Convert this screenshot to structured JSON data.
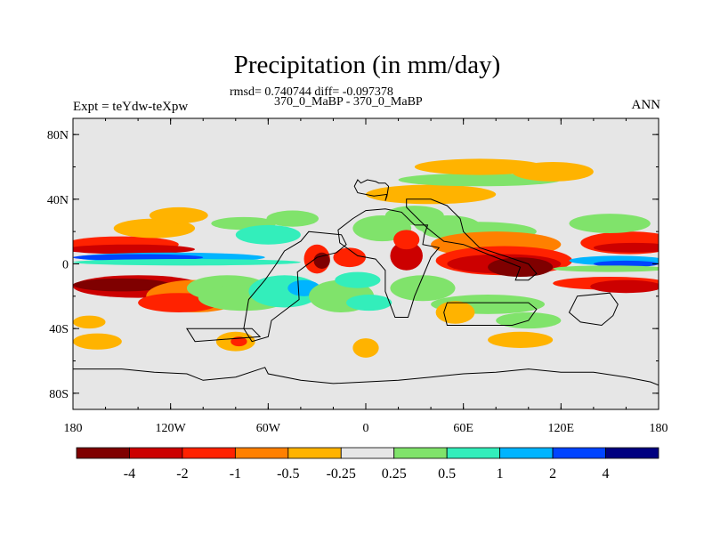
{
  "title": "Precipitation (in mm/day)",
  "stats_line": "rmsd= 0.740744 diff= -0.097378",
  "subtitle": "370_0_MaBP - 370_0_MaBP",
  "left_label": "Expt = teYdw-teXpw",
  "right_label": "ANN",
  "chart_data": {
    "type": "heatmap",
    "projection": "cylindrical equidistant",
    "x_ticks": [
      "180",
      "120W",
      "60W",
      "0",
      "60E",
      "120E",
      "180"
    ],
    "y_ticks": [
      "80N",
      "40N",
      "0",
      "40S",
      "80S"
    ],
    "xlim": [
      -180,
      180
    ],
    "ylim": [
      -90,
      90
    ],
    "levels": [
      "-4",
      "-2",
      "-1",
      "-0.5",
      "-0.25",
      "0.25",
      "0.5",
      "1",
      "2",
      "4"
    ],
    "colors": [
      "#7f0000",
      "#cc0000",
      "#ff2200",
      "#ff8000",
      "#ffb300",
      "#e6e6e6",
      "#80e36b",
      "#33eebb",
      "#00b4ff",
      "#0044ff",
      "#000080"
    ],
    "background_color": "#e6e6e6",
    "features": [
      {
        "lon": -165,
        "lat": 12,
        "rx": 16,
        "ry": 7,
        "class": 5
      },
      {
        "lon": -150,
        "lat": 12,
        "rx": 35,
        "ry": 5,
        "class": 2
      },
      {
        "lon": -145,
        "lat": 9,
        "rx": 40,
        "ry": 3,
        "class": 1
      },
      {
        "lon": -130,
        "lat": 22,
        "rx": 25,
        "ry": 6,
        "class": 4
      },
      {
        "lon": -115,
        "lat": 30,
        "rx": 18,
        "ry": 5,
        "class": 4
      },
      {
        "lon": -120,
        "lat": 4,
        "rx": 58,
        "ry": 3,
        "class": 8
      },
      {
        "lon": -140,
        "lat": 4,
        "rx": 40,
        "ry": 2,
        "class": 9
      },
      {
        "lon": -110,
        "lat": 1,
        "rx": 70,
        "ry": 2,
        "class": 7
      },
      {
        "lon": -140,
        "lat": -14,
        "rx": 40,
        "ry": 7,
        "class": 1
      },
      {
        "lon": -150,
        "lat": -13,
        "rx": 30,
        "ry": 4,
        "class": 0
      },
      {
        "lon": -105,
        "lat": -20,
        "rx": 30,
        "ry": 10,
        "class": 3
      },
      {
        "lon": -115,
        "lat": -24,
        "rx": 25,
        "ry": 6,
        "class": 2
      },
      {
        "lon": -85,
        "lat": -15,
        "rx": 25,
        "ry": 8,
        "class": 6
      },
      {
        "lon": -75,
        "lat": -21,
        "rx": 28,
        "ry": 8,
        "class": 6
      },
      {
        "lon": -50,
        "lat": -17,
        "rx": 22,
        "ry": 10,
        "class": 7
      },
      {
        "lon": -38,
        "lat": -15,
        "rx": 10,
        "ry": 5,
        "class": 8
      },
      {
        "lon": -75,
        "lat": 25,
        "rx": 20,
        "ry": 4,
        "class": 6
      },
      {
        "lon": -60,
        "lat": 18,
        "rx": 20,
        "ry": 6,
        "class": 7
      },
      {
        "lon": -45,
        "lat": 28,
        "rx": 16,
        "ry": 5,
        "class": 6
      },
      {
        "lon": -30,
        "lat": 3,
        "rx": 8,
        "ry": 9,
        "class": 2
      },
      {
        "lon": -27,
        "lat": 2,
        "rx": 5,
        "ry": 5,
        "class": 0
      },
      {
        "lon": -10,
        "lat": 4,
        "rx": 10,
        "ry": 6,
        "class": 2
      },
      {
        "lon": -15,
        "lat": -20,
        "rx": 20,
        "ry": 10,
        "class": 6
      },
      {
        "lon": 2,
        "lat": -24,
        "rx": 14,
        "ry": 5,
        "class": 7
      },
      {
        "lon": -5,
        "lat": -10,
        "rx": 14,
        "ry": 5,
        "class": 7
      },
      {
        "lon": 10,
        "lat": 22,
        "rx": 18,
        "ry": 8,
        "class": 6
      },
      {
        "lon": 25,
        "lat": 5,
        "rx": 10,
        "ry": 9,
        "class": 1
      },
      {
        "lon": 25,
        "lat": 15,
        "rx": 8,
        "ry": 6,
        "class": 2
      },
      {
        "lon": 35,
        "lat": -15,
        "rx": 20,
        "ry": 8,
        "class": 6
      },
      {
        "lon": 30,
        "lat": 30,
        "rx": 18,
        "ry": 6,
        "class": 6
      },
      {
        "lon": 40,
        "lat": 43,
        "rx": 40,
        "ry": 6,
        "class": 4
      },
      {
        "lon": 70,
        "lat": 52,
        "rx": 50,
        "ry": 4,
        "class": 6
      },
      {
        "lon": 70,
        "lat": 60,
        "rx": 40,
        "ry": 5,
        "class": 4
      },
      {
        "lon": 115,
        "lat": 57,
        "rx": 25,
        "ry": 6,
        "class": 4
      },
      {
        "lon": 50,
        "lat": 24,
        "rx": 20,
        "ry": 6,
        "class": 6
      },
      {
        "lon": 70,
        "lat": 20,
        "rx": 35,
        "ry": 6,
        "class": 6
      },
      {
        "lon": 80,
        "lat": 12,
        "rx": 40,
        "ry": 8,
        "class": 3
      },
      {
        "lon": 85,
        "lat": 2,
        "rx": 42,
        "ry": 9,
        "class": 2
      },
      {
        "lon": 85,
        "lat": 0,
        "rx": 35,
        "ry": 6,
        "class": 1
      },
      {
        "lon": 95,
        "lat": -2,
        "rx": 20,
        "ry": 6,
        "class": 0
      },
      {
        "lon": 75,
        "lat": -25,
        "rx": 35,
        "ry": 6,
        "class": 6
      },
      {
        "lon": 100,
        "lat": -35,
        "rx": 20,
        "ry": 5,
        "class": 6
      },
      {
        "lon": 55,
        "lat": -30,
        "rx": 12,
        "ry": 7,
        "class": 4
      },
      {
        "lon": 95,
        "lat": -47,
        "rx": 20,
        "ry": 5,
        "class": 4
      },
      {
        "lon": 162,
        "lat": 13,
        "rx": 30,
        "ry": 7,
        "class": 2
      },
      {
        "lon": 165,
        "lat": 10,
        "rx": 25,
        "ry": 3,
        "class": 1
      },
      {
        "lon": 155,
        "lat": 2,
        "rx": 30,
        "ry": 3,
        "class": 8
      },
      {
        "lon": 160,
        "lat": 0,
        "rx": 20,
        "ry": 2,
        "class": 9
      },
      {
        "lon": 150,
        "lat": -3,
        "rx": 35,
        "ry": 2,
        "class": 6
      },
      {
        "lon": 150,
        "lat": -12,
        "rx": 35,
        "ry": 4,
        "class": 2
      },
      {
        "lon": 160,
        "lat": -14,
        "rx": 22,
        "ry": 4,
        "class": 1
      },
      {
        "lon": 150,
        "lat": 25,
        "rx": 25,
        "ry": 6,
        "class": 6
      },
      {
        "lon": -170,
        "lat": -36,
        "rx": 10,
        "ry": 4,
        "class": 4
      },
      {
        "lon": -165,
        "lat": -48,
        "rx": 15,
        "ry": 5,
        "class": 4
      },
      {
        "lon": -80,
        "lat": -48,
        "rx": 12,
        "ry": 6,
        "class": 4
      },
      {
        "lon": -78,
        "lat": -48,
        "rx": 5,
        "ry": 3,
        "class": 2
      },
      {
        "lon": 0,
        "lat": -52,
        "rx": 8,
        "ry": 6,
        "class": 4
      }
    ],
    "continents": [
      [
        [
          -5,
          52
        ],
        [
          -3,
          50
        ],
        [
          1,
          52
        ],
        [
          6,
          51
        ],
        [
          8,
          50
        ],
        [
          12,
          50
        ],
        [
          14,
          48
        ],
        [
          13,
          42
        ],
        [
          12,
          39
        ],
        [
          13,
          43
        ],
        [
          5,
          42
        ],
        [
          -5,
          44
        ],
        [
          -7,
          48
        ]
      ],
      [
        [
          30,
          24
        ],
        [
          38,
          24
        ],
        [
          36,
          18
        ],
        [
          35,
          12
        ],
        [
          45,
          10
        ],
        [
          40,
          4
        ],
        [
          35,
          -8
        ],
        [
          30,
          -20
        ],
        [
          26,
          -33
        ],
        [
          18,
          -33
        ],
        [
          12,
          -17
        ],
        [
          12,
          -4
        ],
        [
          6,
          3
        ],
        [
          -5,
          5
        ],
        [
          -16,
          13
        ],
        [
          -17,
          21
        ],
        [
          -8,
          28
        ],
        [
          0,
          33
        ],
        [
          12,
          34
        ],
        [
          22,
          32
        ]
      ],
      [
        [
          -35,
          20
        ],
        [
          -15,
          18
        ],
        [
          -12,
          12
        ],
        [
          -18,
          7
        ],
        [
          -30,
          4
        ],
        [
          -42,
          -5
        ],
        [
          -41,
          -22
        ],
        [
          -58,
          -35
        ],
        [
          -60,
          -45
        ],
        [
          -70,
          -48
        ],
        [
          -75,
          -40
        ],
        [
          -72,
          -22
        ],
        [
          -62,
          -10
        ],
        [
          -55,
          0
        ],
        [
          -50,
          8
        ],
        [
          -40,
          14
        ]
      ],
      [
        [
          25,
          40
        ],
        [
          40,
          40
        ],
        [
          50,
          36
        ],
        [
          58,
          28
        ],
        [
          60,
          20
        ],
        [
          70,
          10
        ],
        [
          85,
          5
        ],
        [
          100,
          0
        ],
        [
          105,
          -6
        ],
        [
          100,
          -10
        ],
        [
          92,
          -10
        ],
        [
          95,
          -2
        ],
        [
          75,
          6
        ],
        [
          60,
          12
        ],
        [
          48,
          14
        ],
        [
          38,
          22
        ],
        [
          30,
          30
        ],
        [
          25,
          35
        ]
      ],
      [
        [
          50,
          -24
        ],
        [
          100,
          -24
        ],
        [
          105,
          -28
        ],
        [
          100,
          -35
        ],
        [
          90,
          -38
        ],
        [
          50,
          -38
        ],
        [
          48,
          -30
        ]
      ],
      [
        [
          -110,
          -40
        ],
        [
          -70,
          -40
        ],
        [
          -65,
          -45
        ],
        [
          -105,
          -48
        ]
      ],
      [
        [
          -180,
          -65
        ],
        [
          -150,
          -65
        ],
        [
          -130,
          -67
        ],
        [
          -110,
          -68
        ],
        [
          -100,
          -72
        ],
        [
          -80,
          -70
        ],
        [
          -62,
          -64
        ],
        [
          -60,
          -68
        ],
        [
          -40,
          -72
        ],
        [
          -20,
          -74
        ],
        [
          0,
          -73
        ],
        [
          20,
          -72
        ],
        [
          40,
          -70
        ],
        [
          60,
          -68
        ],
        [
          80,
          -67
        ],
        [
          100,
          -65
        ],
        [
          120,
          -67
        ],
        [
          140,
          -67
        ],
        [
          160,
          -70
        ],
        [
          175,
          -73
        ],
        [
          180,
          -75
        ],
        [
          180,
          -90
        ],
        [
          -180,
          -90
        ]
      ],
      [
        [
          130,
          -20
        ],
        [
          150,
          -18
        ],
        [
          155,
          -25
        ],
        [
          152,
          -32
        ],
        [
          145,
          -38
        ],
        [
          132,
          -36
        ],
        [
          125,
          -30
        ]
      ]
    ]
  }
}
